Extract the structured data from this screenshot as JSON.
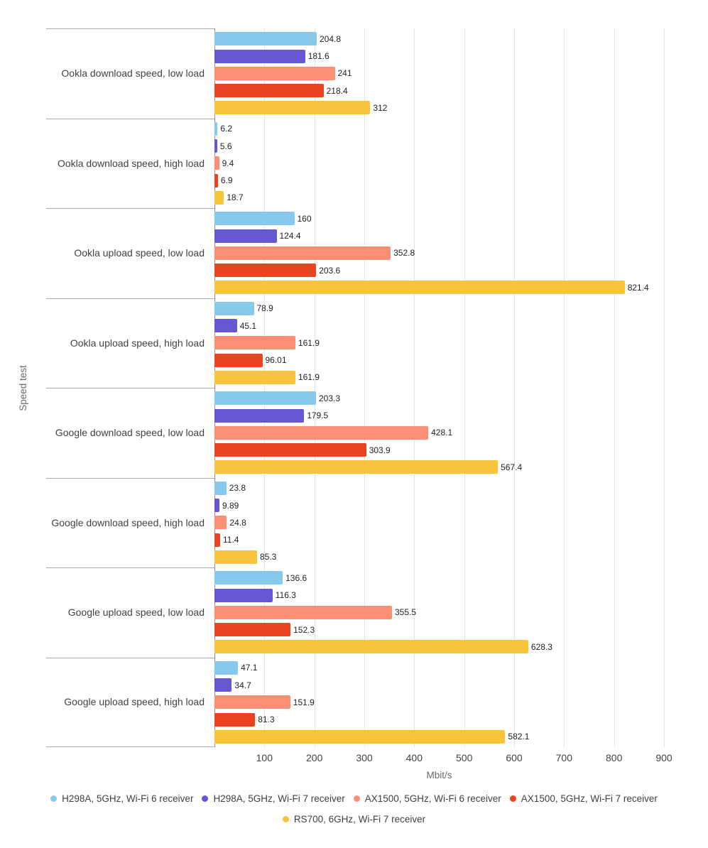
{
  "chart_data": {
    "type": "bar",
    "orientation": "horizontal",
    "title": "",
    "xlabel": "Mbit/s",
    "ylabel": "Speed test",
    "xlim": [
      0,
      900
    ],
    "xticks": [
      100,
      200,
      300,
      400,
      500,
      600,
      700,
      800,
      900
    ],
    "grid": "vertical gridlines every 100, category separator lines in label gutter",
    "legend_position": "bottom",
    "value_labels": true,
    "categories": [
      "Ookla download speed, low load",
      "Ookla download speed, high load",
      "Ookla upload speed, low load",
      "Ookla upload speed, high load",
      "Google download speed, low load",
      "Google download speed, high load",
      "Google upload speed, low load",
      "Google upload speed, high load"
    ],
    "series": [
      {
        "name": "H298A, 5GHz, Wi-Fi 6 receiver",
        "color": "#85C9EC",
        "values": [
          204.8,
          6.2,
          160,
          78.9,
          203.3,
          23.8,
          136.6,
          47.1
        ]
      },
      {
        "name": "H298A, 5GHz, Wi-Fi 7 receiver",
        "color": "#6658D2",
        "values": [
          181.6,
          5.6,
          124.4,
          45.1,
          179.5,
          9.89,
          116.3,
          34.7
        ]
      },
      {
        "name": "AX1500, 5GHz, Wi-Fi 6 receiver",
        "color": "#FA8F75",
        "values": [
          241,
          9.4,
          352.8,
          161.9,
          428.1,
          24.8,
          355.5,
          151.9
        ]
      },
      {
        "name": "AX1500, 5GHz, Wi-Fi 7 receiver",
        "color": "#E8441F",
        "values": [
          218.4,
          6.9,
          203.6,
          96.01,
          303.9,
          11.4,
          152.3,
          81.3
        ]
      },
      {
        "name": "RS700, 6GHz, Wi-Fi 7 receiver",
        "color": "#F7C43C",
        "values": [
          312,
          18.7,
          821.4,
          161.9,
          567.4,
          85.3,
          628.3,
          582.1
        ]
      }
    ]
  },
  "colors": {
    "background": "#ffffff",
    "gridline": "#e4e4e4",
    "separator_line": "#ababab",
    "axis_baseline": "#8d8d8d",
    "category_text": "#424242",
    "tick_text": "#424242",
    "value_text": "#1f1f1f",
    "axis_title_text": "#6b6b6b",
    "legend_text": "#3c4043"
  }
}
